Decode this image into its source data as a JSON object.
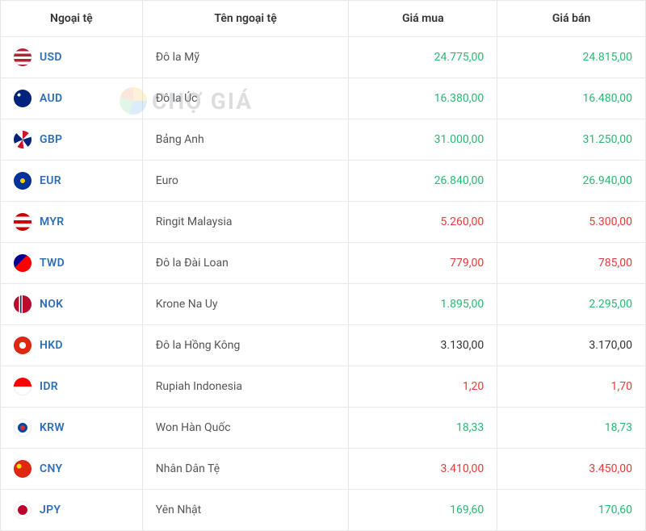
{
  "colors": {
    "border": "#e8e8e8",
    "link": "#2f6fb4",
    "up": "#2bb673",
    "down": "#e23b3b",
    "neutral": "#333333",
    "text": "#555555"
  },
  "watermark": "CHỢ GIÁ",
  "headers": {
    "code": "Ngoại tệ",
    "name": "Tên ngoại tệ",
    "buy": "Giá mua",
    "sell": "Giá bán"
  },
  "rows": [
    {
      "code": "USD",
      "name": "Đô la Mỹ",
      "buy": "24.775,00",
      "sell": "24.815,00",
      "buy_state": "up",
      "sell_state": "up",
      "flag": "linear-gradient(180deg,#b22234 0 15%,#fff 15% 30%,#b22234 30% 45%,#fff 45% 60%,#b22234 60% 75%,#fff 75% 90%,#b22234 90% 100%)"
    },
    {
      "code": "AUD",
      "name": "Đô la Úc",
      "buy": "16.380,00",
      "sell": "16.480,00",
      "buy_state": "up",
      "sell_state": "up",
      "flag": "radial-gradient(circle at 30% 30%, #fff 0 2px, transparent 2px), #00247d"
    },
    {
      "code": "GBP",
      "name": "Bảng Anh",
      "buy": "31.000,00",
      "sell": "31.250,00",
      "buy_state": "up",
      "sell_state": "up",
      "flag": "conic-gradient(#cf142b 0 12%, #fff 12% 20%, #00247d 20% 40%, #fff 40% 48%, #cf142b 48% 60%, #fff 60% 68%, #00247d 68% 88%, #fff 88% 100%)"
    },
    {
      "code": "EUR",
      "name": "Euro",
      "buy": "26.840,00",
      "sell": "26.940,00",
      "buy_state": "up",
      "sell_state": "up",
      "flag": "radial-gradient(circle, #ffcc00 0 3px, transparent 3px), #003399"
    },
    {
      "code": "MYR",
      "name": "Ringit Malaysia",
      "buy": "5.260,00",
      "sell": "5.300,00",
      "buy_state": "down",
      "sell_state": "down",
      "flag": "linear-gradient(180deg,#cc0000 0 20%,#fff 20% 40%,#cc0000 40% 60%,#fff 60% 80%,#cc0000 80% 100%)"
    },
    {
      "code": "TWD",
      "name": "Đô la Đài Loan",
      "buy": "779,00",
      "sell": "785,00",
      "buy_state": "down",
      "sell_state": "down",
      "flag": "linear-gradient(135deg,#000095 0 40%,#fe0000 40% 100%)"
    },
    {
      "code": "NOK",
      "name": "Krone Na Uy",
      "buy": "1.895,00",
      "sell": "2.295,00",
      "buy_state": "up",
      "sell_state": "up",
      "flag": "linear-gradient(90deg,#ba0c2f 0 30%,#fff 30% 36%,#00205b 36% 44%,#fff 44% 50%,#ba0c2f 50% 100%)"
    },
    {
      "code": "HKD",
      "name": "Đô la Hồng Kông",
      "buy": "3.130,00",
      "sell": "3.170,00",
      "buy_state": "neutral",
      "sell_state": "neutral",
      "flag": "radial-gradient(circle,#fff 0 4px, transparent 4px), #de2910"
    },
    {
      "code": "IDR",
      "name": "Rupiah Indonesia",
      "buy": "1,20",
      "sell": "1,70",
      "buy_state": "down",
      "sell_state": "down",
      "flag": "linear-gradient(180deg,#ff0000 0 50%,#fff 50% 100%)"
    },
    {
      "code": "KRW",
      "name": "Won Hàn Quốc",
      "buy": "18,33",
      "sell": "18,73",
      "buy_state": "up",
      "sell_state": "up",
      "flag": "radial-gradient(circle at 50% 50%, #cd2e3a 0 3px, #0047a0 3px 6px, transparent 6px), #ffffff"
    },
    {
      "code": "CNY",
      "name": "Nhân Dân Tệ",
      "buy": "3.410,00",
      "sell": "3.450,00",
      "buy_state": "down",
      "sell_state": "down",
      "flag": "radial-gradient(circle at 30% 35%, #ffde00 0 3px, transparent 3px), #de2910"
    },
    {
      "code": "JPY",
      "name": "Yên Nhật",
      "buy": "169,60",
      "sell": "170,60",
      "buy_state": "up",
      "sell_state": "up",
      "flag": "radial-gradient(circle,#bc002d 0 6px, #fff 6px)"
    }
  ]
}
